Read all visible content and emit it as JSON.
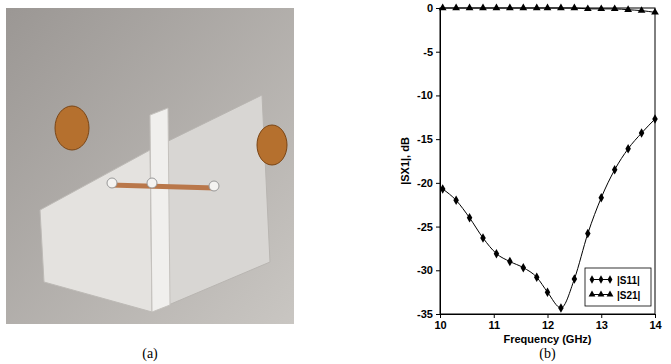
{
  "chart_data": {
    "type": "line",
    "x_label": "Frequency (GHz)",
    "y_label": "|SX1|, dB",
    "x": [
      10.05,
      10.3,
      10.55,
      10.8,
      11.05,
      11.3,
      11.55,
      11.8,
      12.0,
      12.25,
      12.5,
      12.75,
      13.0,
      13.25,
      13.5,
      13.75,
      14.0
    ],
    "series": [
      {
        "name": "|S11|",
        "color": "#000000",
        "marker": "diamond",
        "line_style": "solid",
        "values": [
          -20.7,
          -22,
          -24,
          -26.3,
          -28.1,
          -29,
          -29.7,
          -30.8,
          -32.5,
          -34.3,
          -31,
          -25.8,
          -21.7,
          -18.5,
          -16.1,
          -14.3,
          -12.7
        ]
      },
      {
        "name": "|S21|",
        "color": "#000000",
        "marker": "triangle",
        "line_style": "solid",
        "values": [
          0,
          0,
          0,
          0,
          0,
          0,
          0,
          0,
          0,
          0,
          0,
          -0.1,
          -0.1,
          -0.1,
          -0.2,
          -0.3,
          -0.5
        ]
      }
    ],
    "xlim": [
      10,
      14
    ],
    "xticks": [
      10,
      11,
      12,
      13,
      14
    ],
    "ylim": [
      -35,
      0
    ],
    "yticks": [
      -35,
      -30,
      -25,
      -20,
      -15,
      -10,
      -5,
      0
    ],
    "grid": false,
    "legend": "lower right"
  },
  "captions": [
    "(a)",
    "(b)"
  ]
}
